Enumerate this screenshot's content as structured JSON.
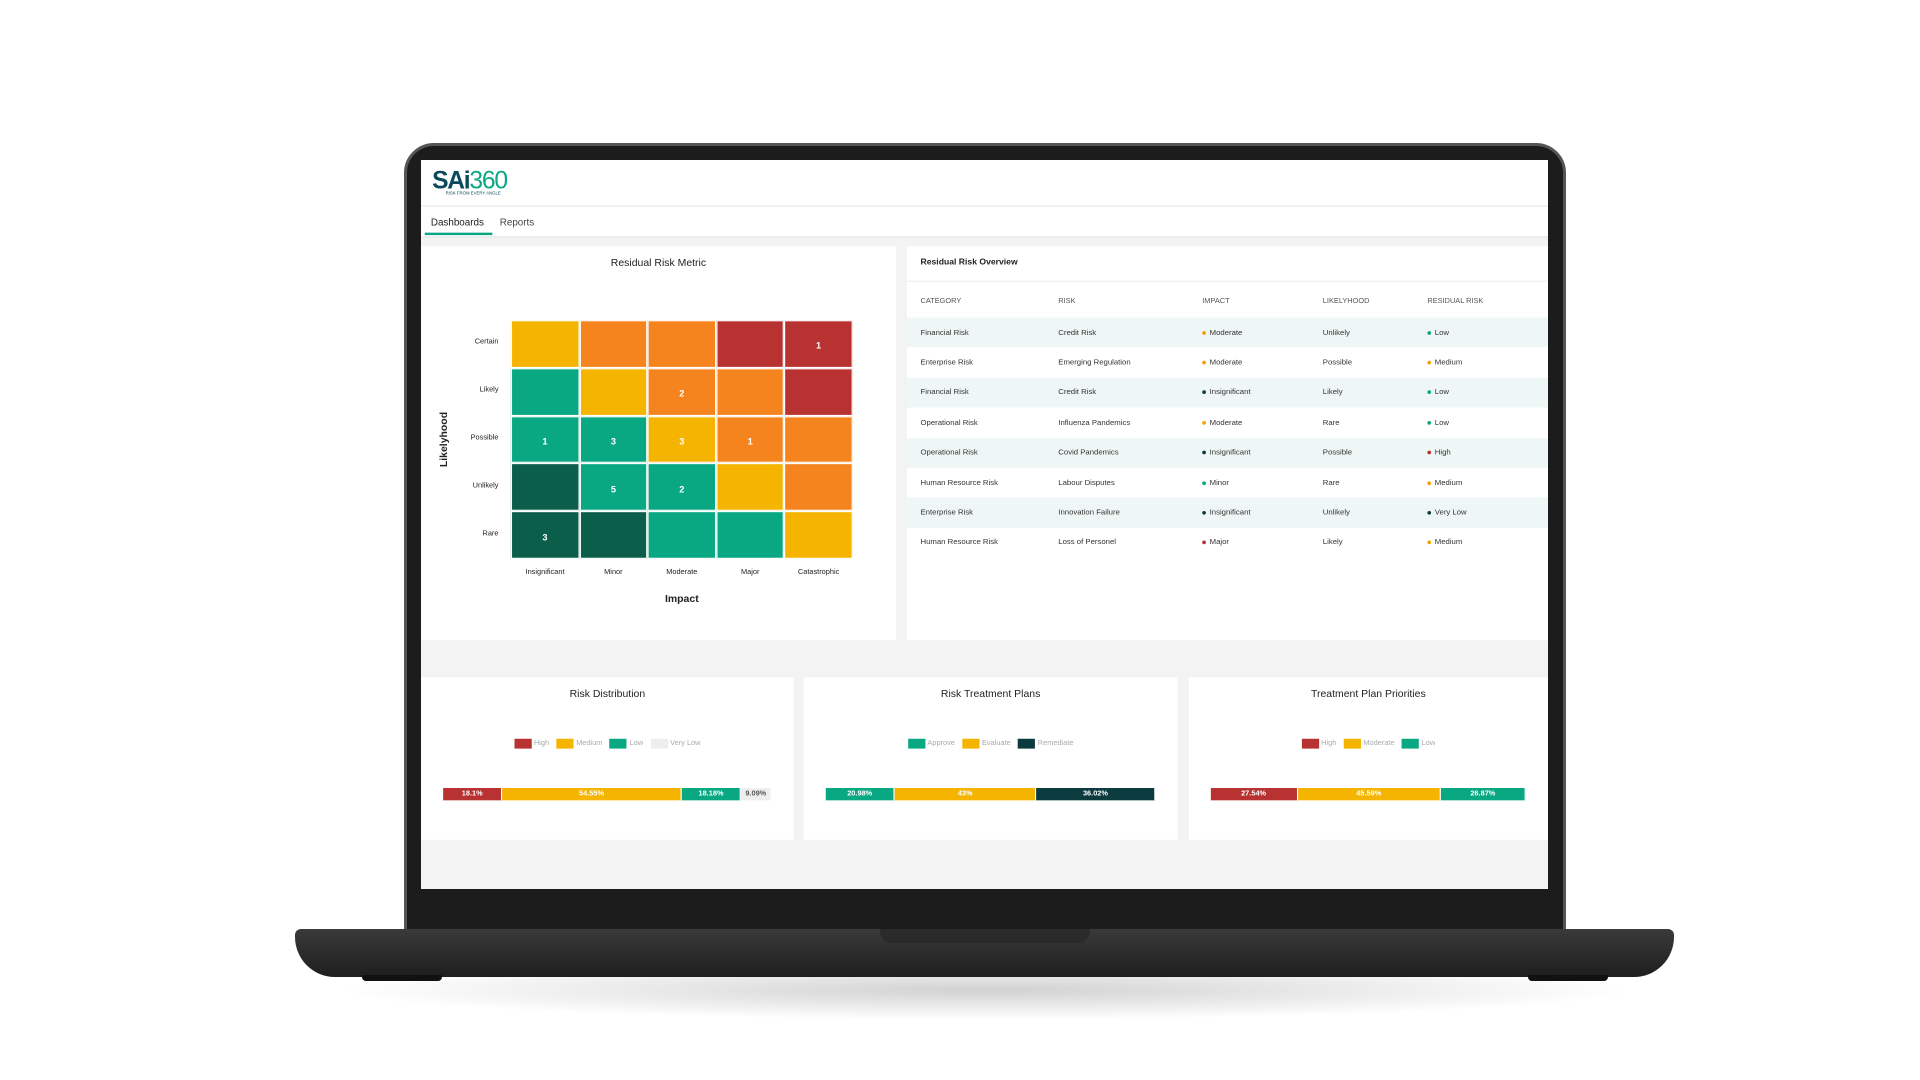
{
  "logo": {
    "brand": "SAi",
    "accent": "360",
    "tagline": "RISK FROM EVERY ANGLE"
  },
  "tabs": [
    "Dashboards",
    "Reports"
  ],
  "heatmap": {
    "title": "Residual Risk Metric",
    "x_label": "Impact",
    "y_label": "Likelyhood",
    "rows": [
      "Certain",
      "Likely",
      "Possible",
      "Unlikely",
      "Rare"
    ],
    "columns": [
      "Insignificant",
      "Minor",
      "Moderate",
      "Major",
      "Catastrophic"
    ],
    "colors": [
      [
        "#f4b400",
        "#f5841f",
        "#f5841f",
        "#b83232",
        "#b83232"
      ],
      [
        "#0aa882",
        "#f4b400",
        "#f5841f",
        "#f5841f",
        "#b83232"
      ],
      [
        "#0aa882",
        "#0aa882",
        "#f4b400",
        "#f5841f",
        "#f5841f"
      ],
      [
        "#0b5e4a",
        "#0aa882",
        "#0aa882",
        "#f4b400",
        "#f5841f"
      ],
      [
        "#0b5e4a",
        "#0b5e4a",
        "#0aa882",
        "#0aa882",
        "#f4b400"
      ]
    ],
    "counts": [
      [
        null,
        null,
        null,
        null,
        1
      ],
      [
        null,
        null,
        2,
        null,
        null
      ],
      [
        1,
        3,
        3,
        1,
        null
      ],
      [
        null,
        5,
        2,
        null,
        null
      ],
      [
        3,
        null,
        null,
        null,
        null
      ]
    ]
  },
  "table": {
    "title": "Residual Risk Overview",
    "columns": [
      "CATEGORY",
      "RISK",
      "IMPACT",
      "LIKELYHOOD",
      "RESIDUAL RISK"
    ],
    "rows": [
      {
        "category": "Financial Risk",
        "risk": "Credit Risk",
        "impact": "Moderate",
        "likelihood": "Unlikely",
        "residual_risk": "Low",
        "impact_color": "#f4a000",
        "residual_color": "#0aa882"
      },
      {
        "category": "Enterprise Risk",
        "risk": "Emerging Regulation",
        "impact": "Moderate",
        "likelihood": "Possible",
        "residual_risk": "Medium",
        "impact_color": "#f4a000",
        "residual_color": "#f4a000"
      },
      {
        "category": "Financial Risk",
        "risk": "Credit Risk",
        "impact": "Insignificant",
        "likelihood": "Likely",
        "residual_risk": "Low",
        "impact_color": "#0b3b3f",
        "residual_color": "#0aa882"
      },
      {
        "category": "Operational Risk",
        "risk": "Influenza Pandemics",
        "impact": "Moderate",
        "likelihood": "Rare",
        "residual_risk": "Low",
        "impact_color": "#f4a000",
        "residual_color": "#0aa882"
      },
      {
        "category": "Operational Risk",
        "risk": "Covid Pandemics",
        "impact": "Insignificant",
        "likelihood": "Possible",
        "residual_risk": "High",
        "impact_color": "#0b3b3f",
        "residual_color": "#b83232"
      },
      {
        "category": "Human Resource Risk",
        "risk": "Labour Disputes",
        "impact": "Minor",
        "likelihood": "Rare",
        "residual_risk": "Medium",
        "impact_color": "#0aa882",
        "residual_color": "#f4a000"
      },
      {
        "category": "Enterprise Risk",
        "risk": "Innovation Failure",
        "impact": "Insignificant",
        "likelihood": "Unlikely",
        "residual_risk": "Very Low",
        "impact_color": "#0b3b3f",
        "residual_color": "#0b3b3f"
      },
      {
        "category": "Human Resource Risk",
        "risk": "Loss of Personel",
        "impact": "Major",
        "likelihood": "Likely",
        "residual_risk": "Medium",
        "impact_color": "#b83232",
        "residual_color": "#f4a000"
      }
    ]
  },
  "bars": [
    {
      "title": "Risk Distribution",
      "series": [
        {
          "name": "High",
          "color": "#b83232",
          "value": 18.1,
          "value_label": "18.1%"
        },
        {
          "name": "Medium",
          "color": "#f4b400",
          "value": 54.55,
          "value_label": "54.55%"
        },
        {
          "name": "Low",
          "color": "#0aa882",
          "value": 18.18,
          "value_label": "18.18%"
        },
        {
          "name": "Very Low",
          "color": "#eeeeee",
          "value": 9.09,
          "value_label": "9.09%"
        }
      ]
    },
    {
      "title": "Risk Treatment Plans",
      "series": [
        {
          "name": "Approve",
          "color": "#0aa882",
          "value": 20.98,
          "value_label": "20.98%"
        },
        {
          "name": "Evaluate",
          "color": "#f4b400",
          "value": 43,
          "value_label": "43%"
        },
        {
          "name": "Remediate",
          "color": "#0b3b3f",
          "value": 36.02,
          "value_label": "36.02%"
        }
      ]
    },
    {
      "title": "Treatment Plan Priorities",
      "series": [
        {
          "name": "High",
          "color": "#b83232",
          "value": 27.54,
          "value_label": "27.54%"
        },
        {
          "name": "Moderate",
          "color": "#f4b400",
          "value": 45.59,
          "value_label": "45.59%"
        },
        {
          "name": "Low",
          "color": "#0aa882",
          "value": 26.87,
          "value_label": "26.87%"
        }
      ]
    }
  ]
}
